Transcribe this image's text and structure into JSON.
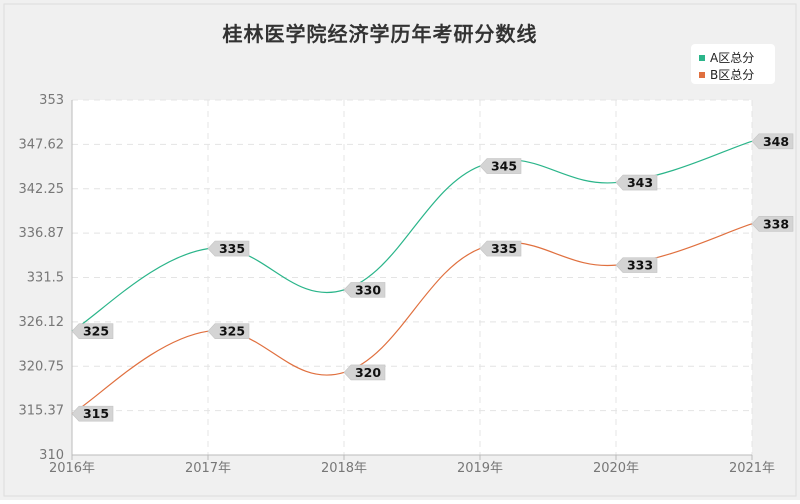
{
  "chart_data": {
    "type": "line",
    "title": "桂林医学院经济学历年考研分数线",
    "categories": [
      "2016年",
      "2017年",
      "2018年",
      "2019年",
      "2020年",
      "2021年"
    ],
    "ylim": [
      310,
      353
    ],
    "yticks": [
      "353",
      "347.62",
      "342.25",
      "336.87",
      "331.5",
      "326.12",
      "320.75",
      "315.37",
      "310"
    ],
    "grid": true,
    "legend_position": "top-right",
    "series": [
      {
        "name": "A区总分",
        "values": [
          325,
          335,
          330,
          345,
          343,
          348
        ],
        "color": "#2bb58a"
      },
      {
        "name": "B区总分",
        "values": [
          315,
          325,
          320,
          335,
          333,
          338
        ],
        "color": "#e0703f"
      }
    ]
  }
}
